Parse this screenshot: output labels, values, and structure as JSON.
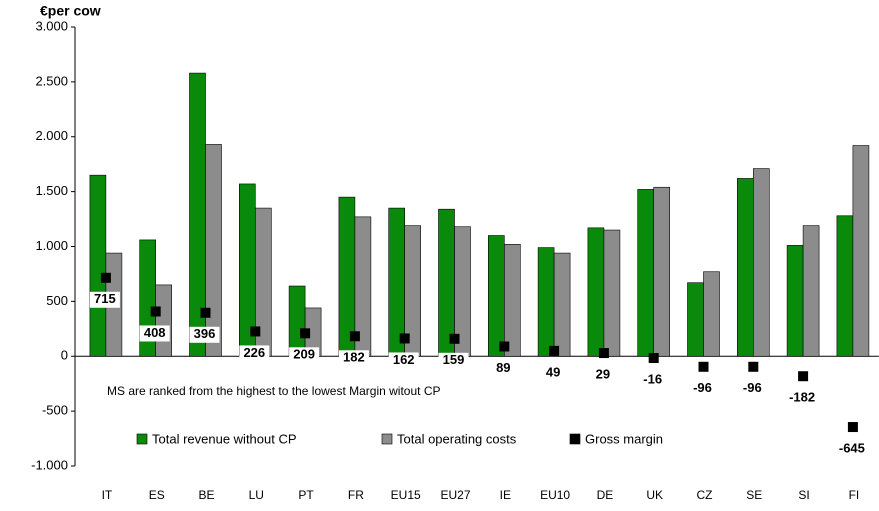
{
  "chart_data": {
    "type": "bar",
    "y_label": "€per cow",
    "annotation": "MS are ranked from the highest to the lowest Margin witout CP",
    "categories": [
      "IT",
      "ES",
      "BE",
      "LU",
      "PT",
      "FR",
      "EU15",
      "EU27",
      "IE",
      "EU10",
      "DE",
      "UK",
      "CZ",
      "SE",
      "SI",
      "FI"
    ],
    "series": [
      {
        "name": "Total revenue without CP",
        "color": "#0a8a0a",
        "values": [
          1650,
          1060,
          2580,
          1570,
          640,
          1450,
          1350,
          1340,
          1100,
          990,
          1170,
          1520,
          670,
          1620,
          1010,
          1280
        ]
      },
      {
        "name": "Total operating costs",
        "color": "#8c8c8c",
        "values": [
          940,
          650,
          1930,
          1350,
          440,
          1270,
          1190,
          1180,
          1020,
          940,
          1150,
          1540,
          770,
          1710,
          1190,
          1920
        ]
      },
      {
        "name": "Gross margin",
        "color": "#000000",
        "marker": "square",
        "values": [
          715,
          408,
          396,
          226,
          209,
          182,
          162,
          159,
          89,
          49,
          29,
          -16,
          -96,
          -96,
          -182,
          -645
        ]
      }
    ],
    "ylim": [
      -1000,
      3000
    ],
    "yticks": [
      {
        "value": -1000,
        "label": "-1.000"
      },
      -500,
      0,
      500,
      {
        "value": 1000,
        "label": "1.000"
      },
      {
        "value": 1500,
        "label": "1.500"
      },
      {
        "value": 2000,
        "label": "2.000"
      },
      {
        "value": 2500,
        "label": "2.500"
      },
      {
        "value": 3000,
        "label": "3.000"
      }
    ],
    "grid": false
  }
}
